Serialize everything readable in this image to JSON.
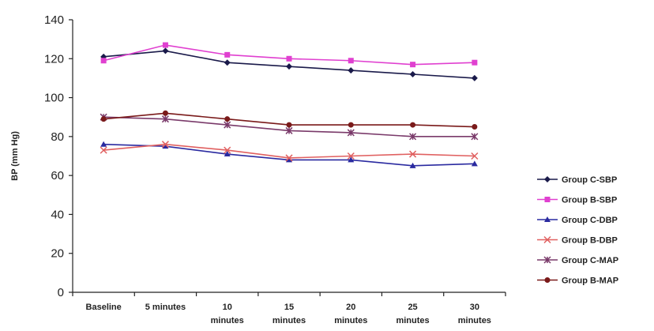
{
  "chart_data": {
    "type": "line",
    "title": "",
    "xlabel": "",
    "ylabel": "BP (mm Hg)",
    "ylim": [
      0,
      140
    ],
    "yticks": [
      0,
      20,
      40,
      60,
      80,
      100,
      120,
      140
    ],
    "grid": false,
    "legend_position": "right",
    "categories": [
      [
        "Baseline"
      ],
      [
        "5 minutes"
      ],
      [
        "10",
        "minutes"
      ],
      [
        "15",
        "minutes"
      ],
      [
        "20",
        "minutes"
      ],
      [
        "25",
        "minutes"
      ],
      [
        "30",
        "minutes"
      ]
    ],
    "series": [
      {
        "name": "Group C-SBP",
        "color": "#1a1a4a",
        "marker": "diamond",
        "values": [
          121,
          124,
          118,
          116,
          114,
          112,
          110
        ]
      },
      {
        "name": "Group B-SBP",
        "color": "#e040d0",
        "marker": "square",
        "values": [
          119,
          127,
          122,
          120,
          119,
          117,
          118
        ]
      },
      {
        "name": "Group C-DBP",
        "color": "#2a2aa0",
        "marker": "triangle",
        "values": [
          76,
          75,
          71,
          68,
          68,
          65,
          66
        ]
      },
      {
        "name": "Group B-DBP",
        "color": "#e06060",
        "marker": "x",
        "values": [
          73,
          76,
          73,
          69,
          70,
          71,
          70
        ]
      },
      {
        "name": "Group C-MAP",
        "color": "#7a3a6a",
        "marker": "star",
        "values": [
          90,
          89,
          86,
          83,
          82,
          80,
          80
        ]
      },
      {
        "name": "Group B-MAP",
        "color": "#7a1a1a",
        "marker": "circle",
        "values": [
          89,
          92,
          89,
          86,
          86,
          86,
          85
        ]
      }
    ]
  }
}
